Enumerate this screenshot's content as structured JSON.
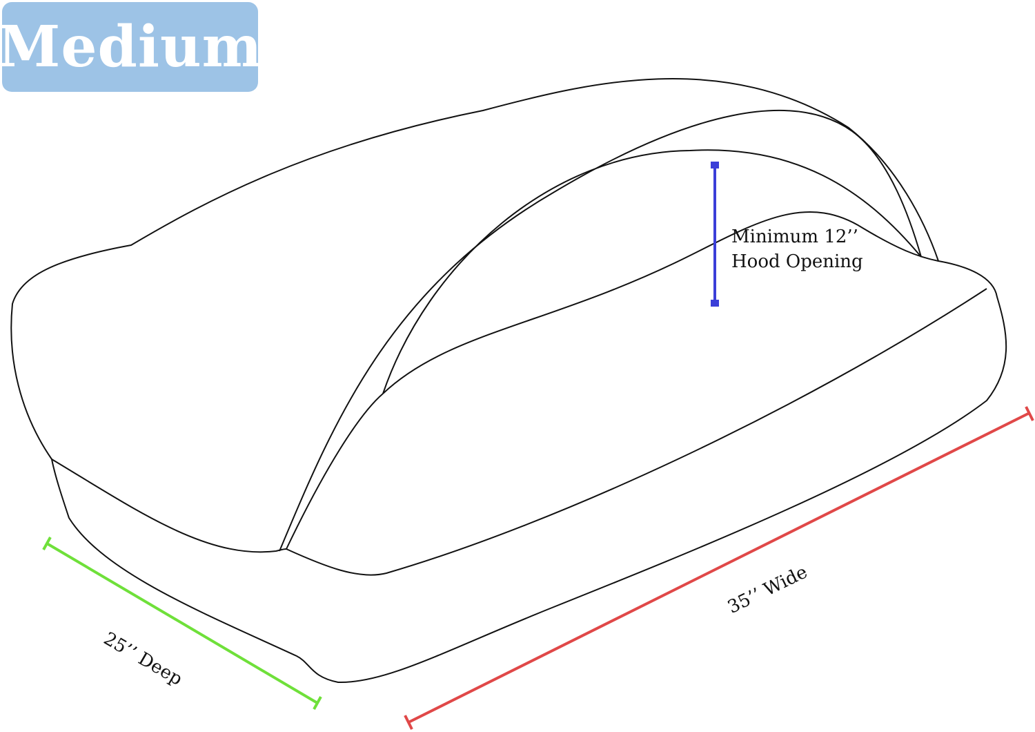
{
  "badge": {
    "label": "Medium",
    "color": "#9dc3e6"
  },
  "labels": {
    "hood_line1": "Minimum 12’’",
    "hood_line2": "Hood Opening",
    "deep": "25’’ Deep",
    "wide": "35’’ Wide"
  },
  "colors": {
    "deep": "#6fe03a",
    "wide": "#e04848",
    "hood": "#3b3fd8",
    "outline": "#111111"
  }
}
